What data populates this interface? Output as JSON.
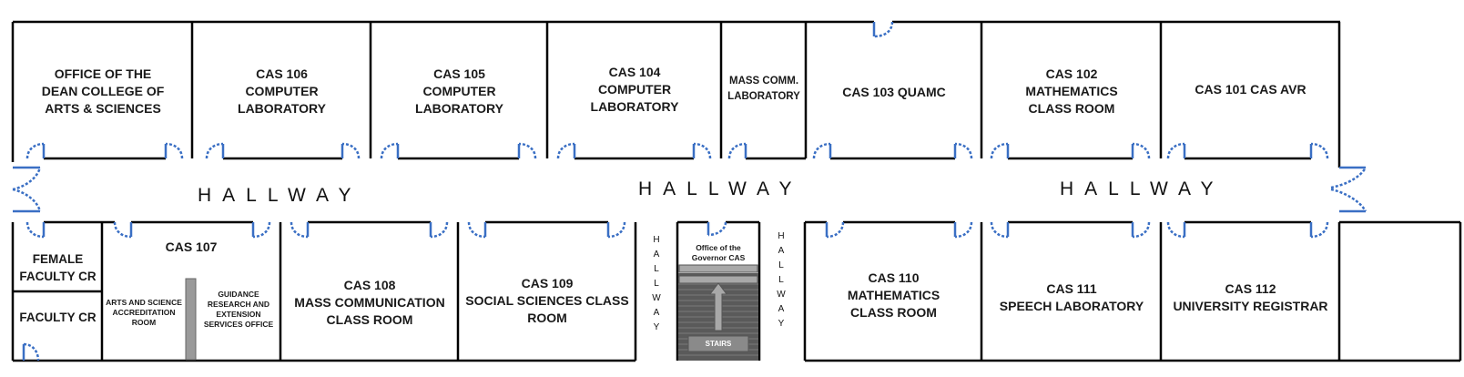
{
  "rooms_top": [
    {
      "id": "dean",
      "label": "OFFICE OF THE\nDEAN COLLEGE OF\nARTS & SCIENCES"
    },
    {
      "id": "cas106",
      "label": "CAS 106\nCOMPUTER\nLABORATORY"
    },
    {
      "id": "cas105",
      "label": "CAS 105\nCOMPUTER\nLABORATORY"
    },
    {
      "id": "cas104",
      "label": "CAS 104\nCOMPUTER\nLABORATORY"
    },
    {
      "id": "masscomm",
      "label": "MASS COMM.\nLABORATORY"
    },
    {
      "id": "cas103",
      "label": "CAS 103 QUAMC"
    },
    {
      "id": "cas102",
      "label": "CAS 102\nMATHEMATICS\nCLASS ROOM"
    },
    {
      "id": "cas101",
      "label": "CAS 101 CAS AVR"
    }
  ],
  "rooms_bottom": [
    {
      "id": "female-faculty",
      "label": "FEMALE\nFACULTY CR"
    },
    {
      "id": "faculty",
      "label": "FACULTY CR"
    },
    {
      "id": "cas107",
      "label": "CAS 107"
    },
    {
      "id": "arts-accreditation",
      "label": "ARTS AND SCIENCE\nACCREDITATION\nROOM"
    },
    {
      "id": "guidance",
      "label": "GUIDANCE\nRESEARCH AND\nEXTENSION\nSERVICES OFFICE"
    },
    {
      "id": "cas108",
      "label": "CAS 108\nMASS COMMUNICATION\nCLASS ROOM"
    },
    {
      "id": "cas109",
      "label": "CAS 109\nSOCIAL SCIENCES CLASS\nROOM"
    },
    {
      "id": "governor",
      "label": "Office of the\nGovernor CAS"
    },
    {
      "id": "stairs",
      "label": "STAIRS"
    },
    {
      "id": "cas110",
      "label": "CAS 110\nMATHEMATICS\nCLASS ROOM"
    },
    {
      "id": "cas111",
      "label": "CAS 111\nSPEECH LABORATORY"
    },
    {
      "id": "cas112",
      "label": "CAS 112\nUNIVERSITY REGISTRAR"
    }
  ],
  "hallways": {
    "main_left": "HALLWAY",
    "main_center": "HALLWAY",
    "main_right": "HALLWAY",
    "vertical_left": "H\nA\nL\nL\nW\nA\nY",
    "vertical_right": "H\nA\nL\nL\nW\nA\nY"
  },
  "colors": {
    "wall": "#000000",
    "door": "#3a6fc4",
    "stairs": "#707070",
    "pillar": "#9a9a9a"
  }
}
